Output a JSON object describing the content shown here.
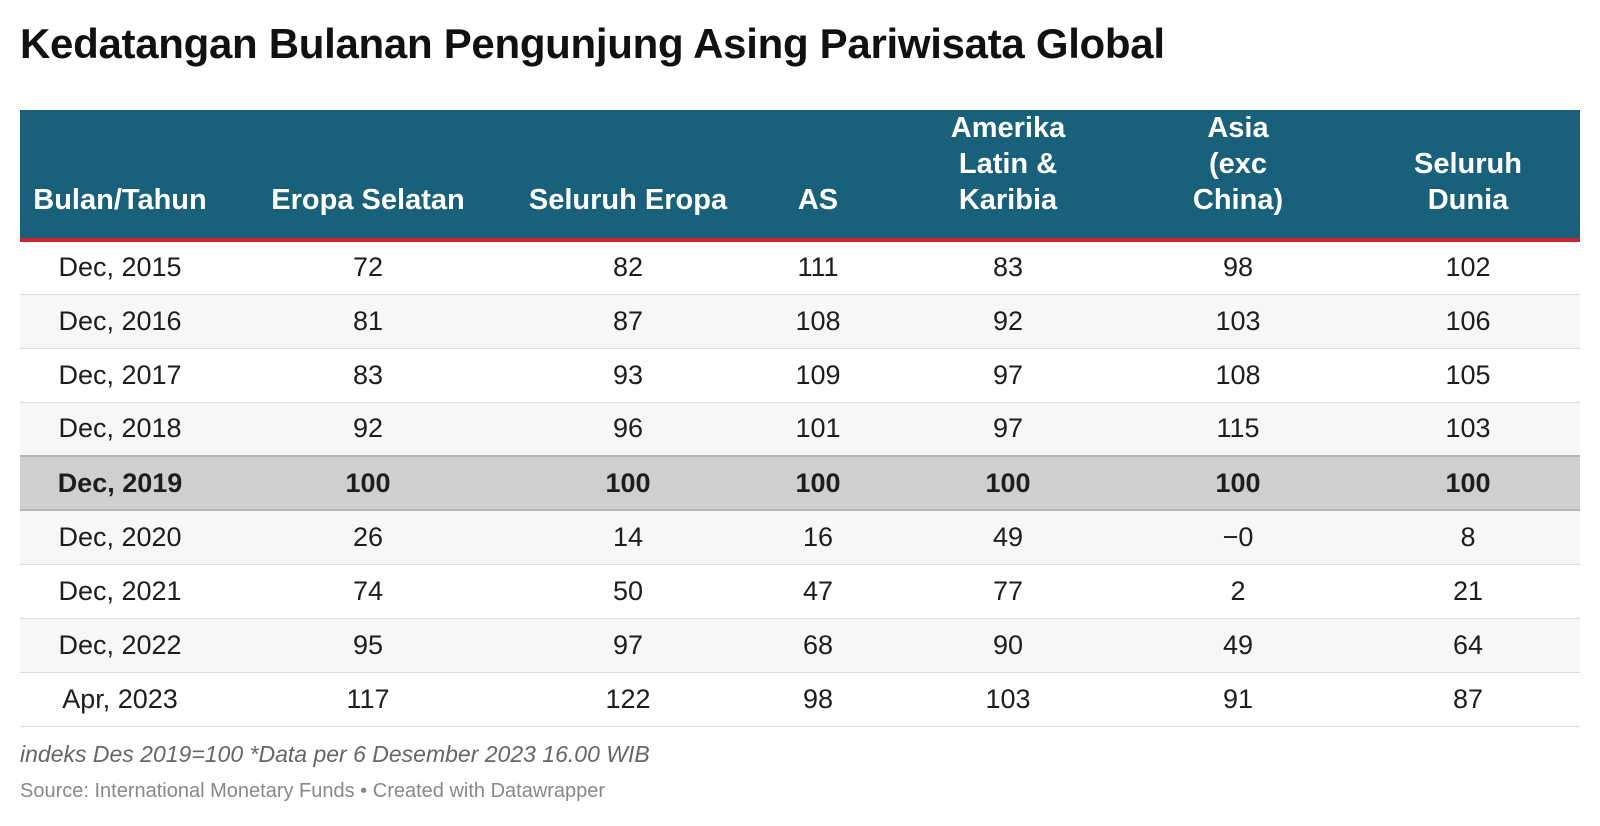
{
  "title": "Kedatangan Bulanan Pengunjung Asing Pariwisata Global",
  "note": "indeks Des 2019=100 *Data per 6 Desember 2023 16.00 WIB",
  "source": "Source: International Monetary Funds • Created with Datawrapper",
  "colors": {
    "header_bg": "#19607a",
    "header_text": "#ffffff",
    "header_rule": "#c8252c",
    "highlight_row": "#cfcfcf"
  },
  "chart_data": {
    "type": "table",
    "columns": [
      "Bulan/Tahun",
      "Eropa Selatan",
      "Seluruh Eropa",
      "AS",
      "Amerika Latin & Karibia",
      "Asia (exc China)",
      "Seluruh Dunia"
    ],
    "highlighted_row": "Dec, 2019",
    "rows": [
      [
        "Dec, 2015",
        "72",
        "82",
        "111",
        "83",
        "98",
        "102"
      ],
      [
        "Dec, 2016",
        "81",
        "87",
        "108",
        "92",
        "103",
        "106"
      ],
      [
        "Dec, 2017",
        "83",
        "93",
        "109",
        "97",
        "108",
        "105"
      ],
      [
        "Dec, 2018",
        "92",
        "96",
        "101",
        "97",
        "115",
        "103"
      ],
      [
        "Dec, 2019",
        "100",
        "100",
        "100",
        "100",
        "100",
        "100"
      ],
      [
        "Dec, 2020",
        "26",
        "14",
        "16",
        "49",
        "−0",
        "8"
      ],
      [
        "Dec, 2021",
        "74",
        "50",
        "47",
        "77",
        "2",
        "21"
      ],
      [
        "Dec, 2022",
        "95",
        "97",
        "68",
        "90",
        "49",
        "64"
      ],
      [
        "Apr, 2023",
        "117",
        "122",
        "98",
        "103",
        "91",
        "87"
      ]
    ]
  }
}
